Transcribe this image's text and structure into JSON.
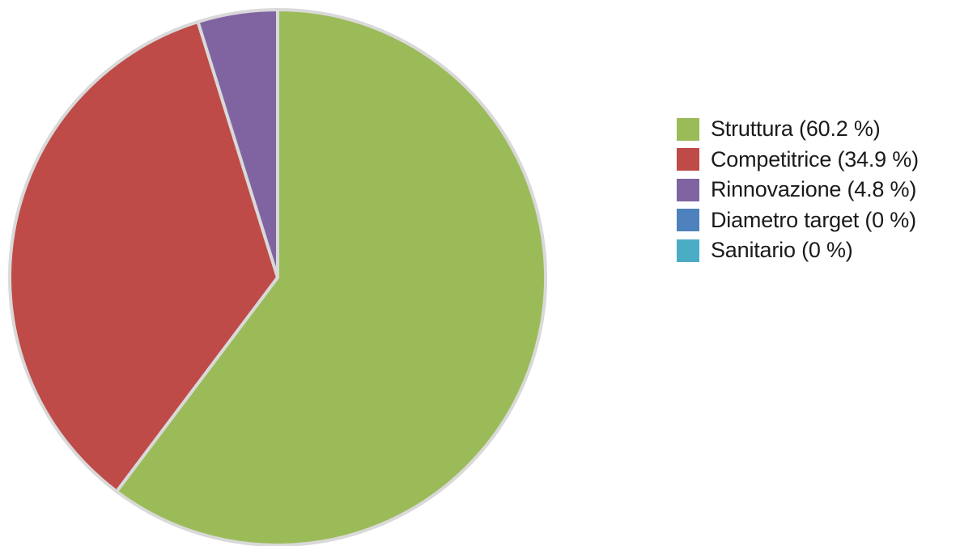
{
  "chart_data": {
    "type": "pie",
    "title": "",
    "slices": [
      {
        "label": "Struttura (60.2 %)",
        "value": 60.2,
        "color": "#9bbb59"
      },
      {
        "label": "Competitrice (34.9 %)",
        "value": 34.9,
        "color": "#be4b48"
      },
      {
        "label": "Rinnovazione (4.8 %)",
        "value": 4.8,
        "color": "#8064a2"
      },
      {
        "label": "Diametro target (0 %)",
        "value": 0,
        "color": "#4f81bd"
      },
      {
        "label": "Sanitario (0 %)",
        "value": 0,
        "color": "#4bacc6"
      }
    ],
    "start": "12 o'clock",
    "direction": "clockwise",
    "slice_border_color": "#d9d9d9",
    "legend_position": "right"
  }
}
